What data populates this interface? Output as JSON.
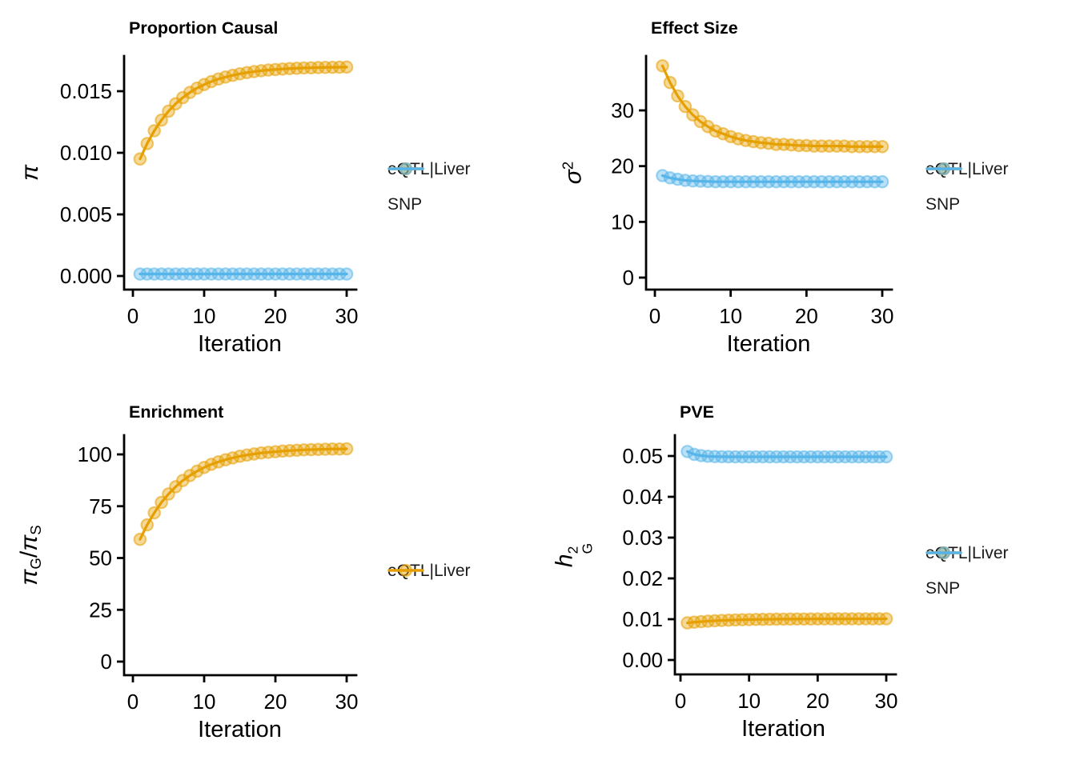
{
  "figure": {
    "background": "#FFFFFF",
    "axis_color": "#000000",
    "series_colors": {
      "eqtl_liver": "#E69F00",
      "snp": "#56B4E9"
    }
  },
  "chart_data": [
    {
      "type": "line",
      "title": "Proportion Causal",
      "xlabel": "Iteration",
      "ylabel": "π",
      "ylabel_parts": [
        {
          "text": "π",
          "italic": true
        }
      ],
      "legend_position": "right",
      "grid": false,
      "xlim": [
        0,
        31
      ],
      "ylim": [
        0,
        0.0175
      ],
      "xticks": {
        "values": [
          0,
          10,
          20,
          30
        ],
        "labels": [
          "0",
          "10",
          "20",
          "30"
        ]
      },
      "yticks": {
        "values": [
          0,
          0.005,
          0.01,
          0.015
        ],
        "labels": [
          "0.000",
          "0.005",
          "0.010",
          "0.015"
        ]
      },
      "x": [
        1,
        2,
        3,
        4,
        5,
        6,
        7,
        8,
        9,
        10,
        11,
        12,
        13,
        14,
        15,
        16,
        17,
        18,
        19,
        20,
        21,
        22,
        23,
        24,
        25,
        26,
        27,
        28,
        29,
        30
      ],
      "series": [
        {
          "name": "eQTL|Liver",
          "color": "#E69F00",
          "values": [
            0.0095,
            0.01075,
            0.01179,
            0.01265,
            0.01338,
            0.01398,
            0.01448,
            0.0149,
            0.01525,
            0.01554,
            0.01578,
            0.01599,
            0.01615,
            0.01629,
            0.01641,
            0.01651,
            0.01659,
            0.01666,
            0.01672,
            0.01676,
            0.0168,
            0.01684,
            0.01686,
            0.01689,
            0.0169,
            0.01692,
            0.01693,
            0.01694,
            0.01695,
            0.01696
          ]
        },
        {
          "name": "SNP",
          "color": "#56B4E9",
          "values": [
            0.00016,
            0.00016,
            0.00016,
            0.00016,
            0.00016,
            0.00016,
            0.00016,
            0.00016,
            0.00016,
            0.00016,
            0.00016,
            0.00016,
            0.00016,
            0.00016,
            0.00016,
            0.00016,
            0.00016,
            0.00016,
            0.00016,
            0.00016,
            0.00016,
            0.00016,
            0.00016,
            0.00016,
            0.00016,
            0.00016,
            0.00016,
            0.00016,
            0.00016,
            0.00016
          ]
        }
      ]
    },
    {
      "type": "line",
      "title": "Effect Size",
      "xlabel": "Iteration",
      "ylabel": "σ²",
      "ylabel_parts": [
        {
          "text": "σ",
          "italic": true,
          "sup": "2"
        }
      ],
      "legend_position": "right",
      "grid": false,
      "xlim": [
        0,
        31
      ],
      "ylim": [
        0,
        38.5
      ],
      "xticks": {
        "values": [
          0,
          10,
          20,
          30
        ],
        "labels": [
          "0",
          "10",
          "20",
          "30"
        ]
      },
      "yticks": {
        "values": [
          0,
          10,
          20,
          30
        ],
        "labels": [
          "0",
          "10",
          "20",
          "30"
        ]
      },
      "x": [
        1,
        2,
        3,
        4,
        5,
        6,
        7,
        8,
        9,
        10,
        11,
        12,
        13,
        14,
        15,
        16,
        17,
        18,
        19,
        20,
        21,
        22,
        23,
        24,
        25,
        26,
        27,
        28,
        29,
        30
      ],
      "series": [
        {
          "name": "eQTL|Liver",
          "color": "#E69F00",
          "values": [
            38.0,
            35.0,
            32.6,
            30.7,
            29.2,
            28.0,
            27.1,
            26.3,
            25.8,
            25.3,
            24.9,
            24.6,
            24.4,
            24.2,
            24.1,
            23.9,
            23.9,
            23.8,
            23.7,
            23.7,
            23.6,
            23.6,
            23.6,
            23.6,
            23.6,
            23.5,
            23.5,
            23.5,
            23.5,
            23.5
          ]
        },
        {
          "name": "SNP",
          "color": "#56B4E9",
          "values": [
            18.3,
            17.9,
            17.65,
            17.45,
            17.35,
            17.3,
            17.25,
            17.2,
            17.2,
            17.2,
            17.2,
            17.2,
            17.2,
            17.2,
            17.2,
            17.2,
            17.2,
            17.2,
            17.2,
            17.2,
            17.2,
            17.2,
            17.2,
            17.2,
            17.2,
            17.2,
            17.2,
            17.2,
            17.2,
            17.2
          ]
        }
      ]
    },
    {
      "type": "line",
      "title": "Enrichment",
      "xlabel": "Iteration",
      "ylabel": "π_G/π_S",
      "ylabel_parts": [
        {
          "text": "π",
          "italic": true,
          "sub": "G"
        },
        {
          "text": "/"
        },
        {
          "text": "π",
          "italic": true,
          "sub": "S"
        }
      ],
      "legend_position": "right",
      "grid": false,
      "xlim": [
        0,
        31
      ],
      "ylim": [
        0,
        106
      ],
      "xticks": {
        "values": [
          0,
          10,
          20,
          30
        ],
        "labels": [
          "0",
          "10",
          "20",
          "30"
        ]
      },
      "yticks": {
        "values": [
          0,
          25,
          50,
          75,
          100
        ],
        "labels": [
          "0",
          "25",
          "50",
          "75",
          "100"
        ]
      },
      "x": [
        1,
        2,
        3,
        4,
        5,
        6,
        7,
        8,
        9,
        10,
        11,
        12,
        13,
        14,
        15,
        16,
        17,
        18,
        19,
        20,
        21,
        22,
        23,
        24,
        25,
        26,
        27,
        28,
        29,
        30
      ],
      "series": [
        {
          "name": "eQTL|Liver",
          "color": "#E69F00",
          "values": [
            59.0,
            66.0,
            71.8,
            76.8,
            80.9,
            84.4,
            87.4,
            89.8,
            91.9,
            93.7,
            95.2,
            96.4,
            97.4,
            98.3,
            99.1,
            99.7,
            100.2,
            100.7,
            101.0,
            101.3,
            101.6,
            101.8,
            102.0,
            102.2,
            102.3,
            102.4,
            102.5,
            102.6,
            102.6,
            102.7
          ]
        }
      ]
    },
    {
      "type": "line",
      "title": "PVE",
      "xlabel": "Iteration",
      "ylabel": "h²_G",
      "ylabel_parts": [
        {
          "text": "h",
          "italic": true,
          "sup": "2",
          "sub": "G"
        }
      ],
      "legend_position": "right",
      "grid": false,
      "xlim": [
        0,
        31
      ],
      "ylim": [
        0,
        0.0525
      ],
      "xticks": {
        "values": [
          0,
          10,
          20,
          30
        ],
        "labels": [
          "0",
          "10",
          "20",
          "30"
        ]
      },
      "yticks": {
        "values": [
          0,
          0.01,
          0.02,
          0.03,
          0.04,
          0.05
        ],
        "labels": [
          "0.00",
          "0.01",
          "0.02",
          "0.03",
          "0.04",
          "0.05"
        ]
      },
      "x": [
        1,
        2,
        3,
        4,
        5,
        6,
        7,
        8,
        9,
        10,
        11,
        12,
        13,
        14,
        15,
        16,
        17,
        18,
        19,
        20,
        21,
        22,
        23,
        24,
        25,
        26,
        27,
        28,
        29,
        30
      ],
      "series": [
        {
          "name": "eQTL|Liver",
          "color": "#E69F00",
          "values": [
            0.0091,
            0.00927,
            0.0094,
            0.00952,
            0.00962,
            0.0097,
            0.00976,
            0.00982,
            0.00987,
            0.0099,
            0.00994,
            0.00996,
            0.00999,
            0.01001,
            0.01002,
            0.01003,
            0.01005,
            0.01005,
            0.01006,
            0.01007,
            0.01007,
            0.01008,
            0.01008,
            0.01008,
            0.01009,
            0.01009,
            0.01009,
            0.01009,
            0.01009,
            0.0101
          ]
        },
        {
          "name": "SNP",
          "color": "#56B4E9",
          "values": [
            0.0511,
            0.0504,
            0.0501,
            0.04993,
            0.04986,
            0.04983,
            0.04981,
            0.0498,
            0.0498,
            0.0498,
            0.0498,
            0.0498,
            0.0498,
            0.0498,
            0.0498,
            0.0498,
            0.0498,
            0.0498,
            0.0498,
            0.0498,
            0.0498,
            0.0498,
            0.0498,
            0.0498,
            0.0498,
            0.0498,
            0.0498,
            0.0498,
            0.0498,
            0.0498
          ]
        }
      ]
    }
  ]
}
